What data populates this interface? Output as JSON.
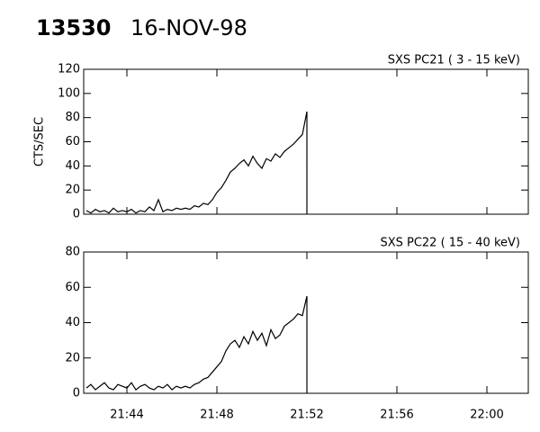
{
  "header": {
    "id": "13530",
    "date": "16-NOV-98"
  },
  "chart_data": [
    {
      "type": "line",
      "title": "SXS PC21  (  3 - 15 keV)",
      "y_label": "CTS/SEC",
      "color": "#000000",
      "x": [
        42.2,
        42.4,
        42.6,
        42.8,
        43.0,
        43.2,
        43.4,
        43.6,
        43.8,
        44.0,
        44.2,
        44.4,
        44.6,
        44.8,
        45.0,
        45.2,
        45.4,
        45.6,
        45.8,
        46.0,
        46.2,
        46.4,
        46.6,
        46.8,
        47.0,
        47.2,
        47.4,
        47.6,
        47.8,
        48.0,
        48.2,
        48.4,
        48.6,
        48.8,
        49.0,
        49.2,
        49.4,
        49.6,
        49.8,
        50.0,
        50.2,
        50.4,
        50.6,
        50.8,
        51.0,
        51.2,
        51.4,
        51.6,
        51.8,
        52.0,
        52.0
      ],
      "values": [
        3,
        1,
        4,
        2,
        3,
        1,
        5,
        2,
        3,
        2,
        4,
        1,
        3,
        2,
        6,
        3,
        12,
        2,
        4,
        3,
        5,
        4,
        5,
        4,
        7,
        6,
        9,
        8,
        12,
        18,
        22,
        28,
        35,
        38,
        42,
        45,
        40,
        48,
        42,
        38,
        46,
        44,
        50,
        47,
        52,
        55,
        58,
        62,
        66,
        85,
        0
      ],
      "xlim": [
        42.08,
        61.84
      ],
      "xticks": [
        {
          "value": 44,
          "label": "21:44"
        },
        {
          "value": 48,
          "label": "21:48"
        },
        {
          "value": 52,
          "label": "21:52"
        },
        {
          "value": 56,
          "label": "21:56"
        },
        {
          "value": 60,
          "label": "22:00"
        }
      ],
      "ylim": [
        0,
        120
      ],
      "yticks": [
        0,
        20,
        40,
        60,
        80,
        100,
        120
      ]
    },
    {
      "type": "line",
      "title": "SXS PC22  ( 15 - 40 keV)",
      "color": "#000000",
      "x": [
        42.2,
        42.4,
        42.6,
        42.8,
        43.0,
        43.2,
        43.4,
        43.6,
        43.8,
        44.0,
        44.2,
        44.4,
        44.6,
        44.8,
        45.0,
        45.2,
        45.4,
        45.6,
        45.8,
        46.0,
        46.2,
        46.4,
        46.6,
        46.8,
        47.0,
        47.2,
        47.4,
        47.6,
        47.8,
        48.0,
        48.2,
        48.4,
        48.6,
        48.8,
        49.0,
        49.2,
        49.4,
        49.6,
        49.8,
        50.0,
        50.2,
        50.4,
        50.6,
        50.8,
        51.0,
        51.2,
        51.4,
        51.6,
        51.8,
        52.0,
        52.0
      ],
      "values": [
        3,
        5,
        2,
        4,
        6,
        3,
        2,
        5,
        4,
        3,
        6,
        2,
        4,
        5,
        3,
        2,
        4,
        3,
        5,
        2,
        4,
        3,
        4,
        3,
        5,
        6,
        8,
        9,
        12,
        15,
        18,
        24,
        28,
        30,
        26,
        32,
        28,
        35,
        30,
        34,
        27,
        36,
        31,
        33,
        38,
        40,
        42,
        45,
        44,
        55,
        0
      ],
      "xlim": [
        42.08,
        61.84
      ],
      "xticks": [
        {
          "value": 44,
          "label": "21:44"
        },
        {
          "value": 48,
          "label": "21:48"
        },
        {
          "value": 52,
          "label": "21:52"
        },
        {
          "value": 56,
          "label": "21:56"
        },
        {
          "value": 60,
          "label": "22:00"
        }
      ],
      "ylim": [
        0,
        80
      ],
      "yticks": [
        0,
        20,
        40,
        60,
        80
      ]
    }
  ]
}
